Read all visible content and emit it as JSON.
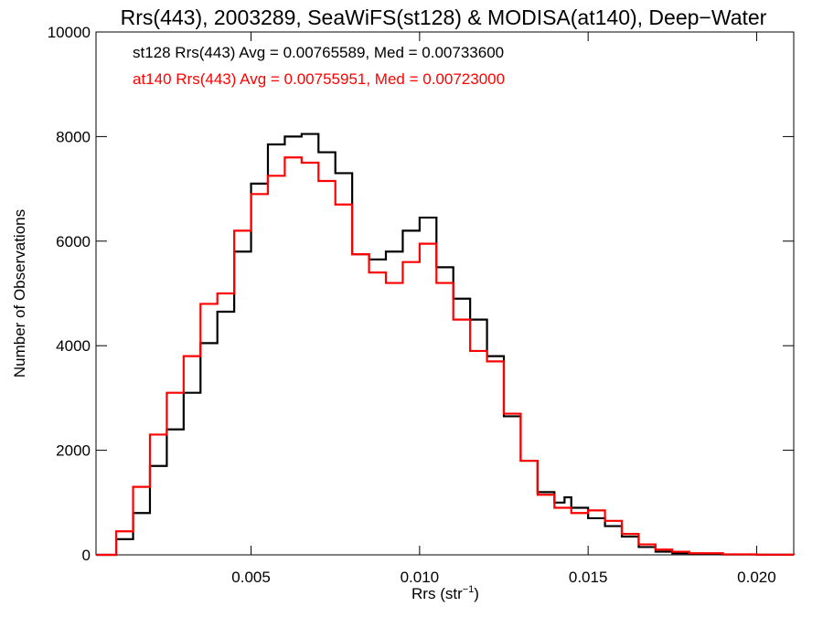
{
  "chart_data": {
    "type": "line",
    "title": "Rrs(443), 2003289, SeaWiFS(st128) & MODISA(at140), Deep−Water",
    "xlabel_main": "Rrs (str",
    "xlabel_sup": "−1",
    "xlabel_close": ")",
    "ylabel": "Number of Observations",
    "xlim": [
      0.0004,
      0.0211
    ],
    "ylim": [
      0,
      10000
    ],
    "x_ticks": [
      0.005,
      0.01,
      0.015,
      0.02
    ],
    "x_tick_labels": [
      "0.005",
      "0.010",
      "0.015",
      "0.020"
    ],
    "y_ticks": [
      0,
      2000,
      4000,
      6000,
      8000,
      10000
    ],
    "y_tick_labels": [
      "0",
      "2000",
      "4000",
      "6000",
      "8000",
      "10000"
    ],
    "grid": false,
    "annotations": [
      {
        "text": "st128 Rrs(443) Avg = 0.00765589, Med = 0.00733600",
        "color": "#000000"
      },
      {
        "text": "at140 Rrs(443) Avg = 0.00755951, Med = 0.00723000",
        "color": "#ff0000"
      }
    ],
    "series": [
      {
        "id": "st128",
        "color": "#000000",
        "x": [
          0.0004,
          0.001,
          0.0015,
          0.002,
          0.0025,
          0.003,
          0.0035,
          0.004,
          0.0045,
          0.005,
          0.0055,
          0.006,
          0.0065,
          0.007,
          0.0075,
          0.008,
          0.0085,
          0.009,
          0.0095,
          0.01,
          0.0105,
          0.011,
          0.0115,
          0.012,
          0.0125,
          0.013,
          0.0135,
          0.014,
          0.0143,
          0.0145,
          0.015,
          0.0155,
          0.016,
          0.0165,
          0.017,
          0.0175,
          0.018,
          0.019,
          0.02,
          0.0211
        ],
        "y": [
          0,
          300,
          800,
          1700,
          2400,
          3100,
          4050,
          4650,
          5800,
          7100,
          7850,
          8000,
          8050,
          7700,
          7300,
          5750,
          5650,
          5800,
          6200,
          6450,
          5500,
          4900,
          4500,
          3800,
          2650,
          1800,
          1200,
          1000,
          1100,
          900,
          700,
          550,
          350,
          150,
          60,
          30,
          15,
          5,
          2,
          0
        ]
      },
      {
        "id": "at140",
        "color": "#ff0000",
        "x": [
          0.0004,
          0.001,
          0.0015,
          0.002,
          0.0025,
          0.003,
          0.0035,
          0.004,
          0.0045,
          0.005,
          0.0055,
          0.006,
          0.0065,
          0.007,
          0.0075,
          0.008,
          0.0085,
          0.009,
          0.0095,
          0.01,
          0.0105,
          0.011,
          0.0115,
          0.012,
          0.0125,
          0.013,
          0.0135,
          0.014,
          0.0145,
          0.015,
          0.0155,
          0.016,
          0.0165,
          0.017,
          0.0175,
          0.018,
          0.019,
          0.02,
          0.0211
        ],
        "y": [
          0,
          450,
          1300,
          2300,
          3100,
          3800,
          4800,
          5000,
          6200,
          6900,
          7250,
          7600,
          7500,
          7150,
          6700,
          5750,
          5400,
          5200,
          5600,
          5950,
          5200,
          4500,
          3900,
          3700,
          2700,
          1800,
          1150,
          900,
          800,
          850,
          650,
          400,
          200,
          100,
          60,
          30,
          10,
          3,
          0
        ]
      }
    ]
  }
}
